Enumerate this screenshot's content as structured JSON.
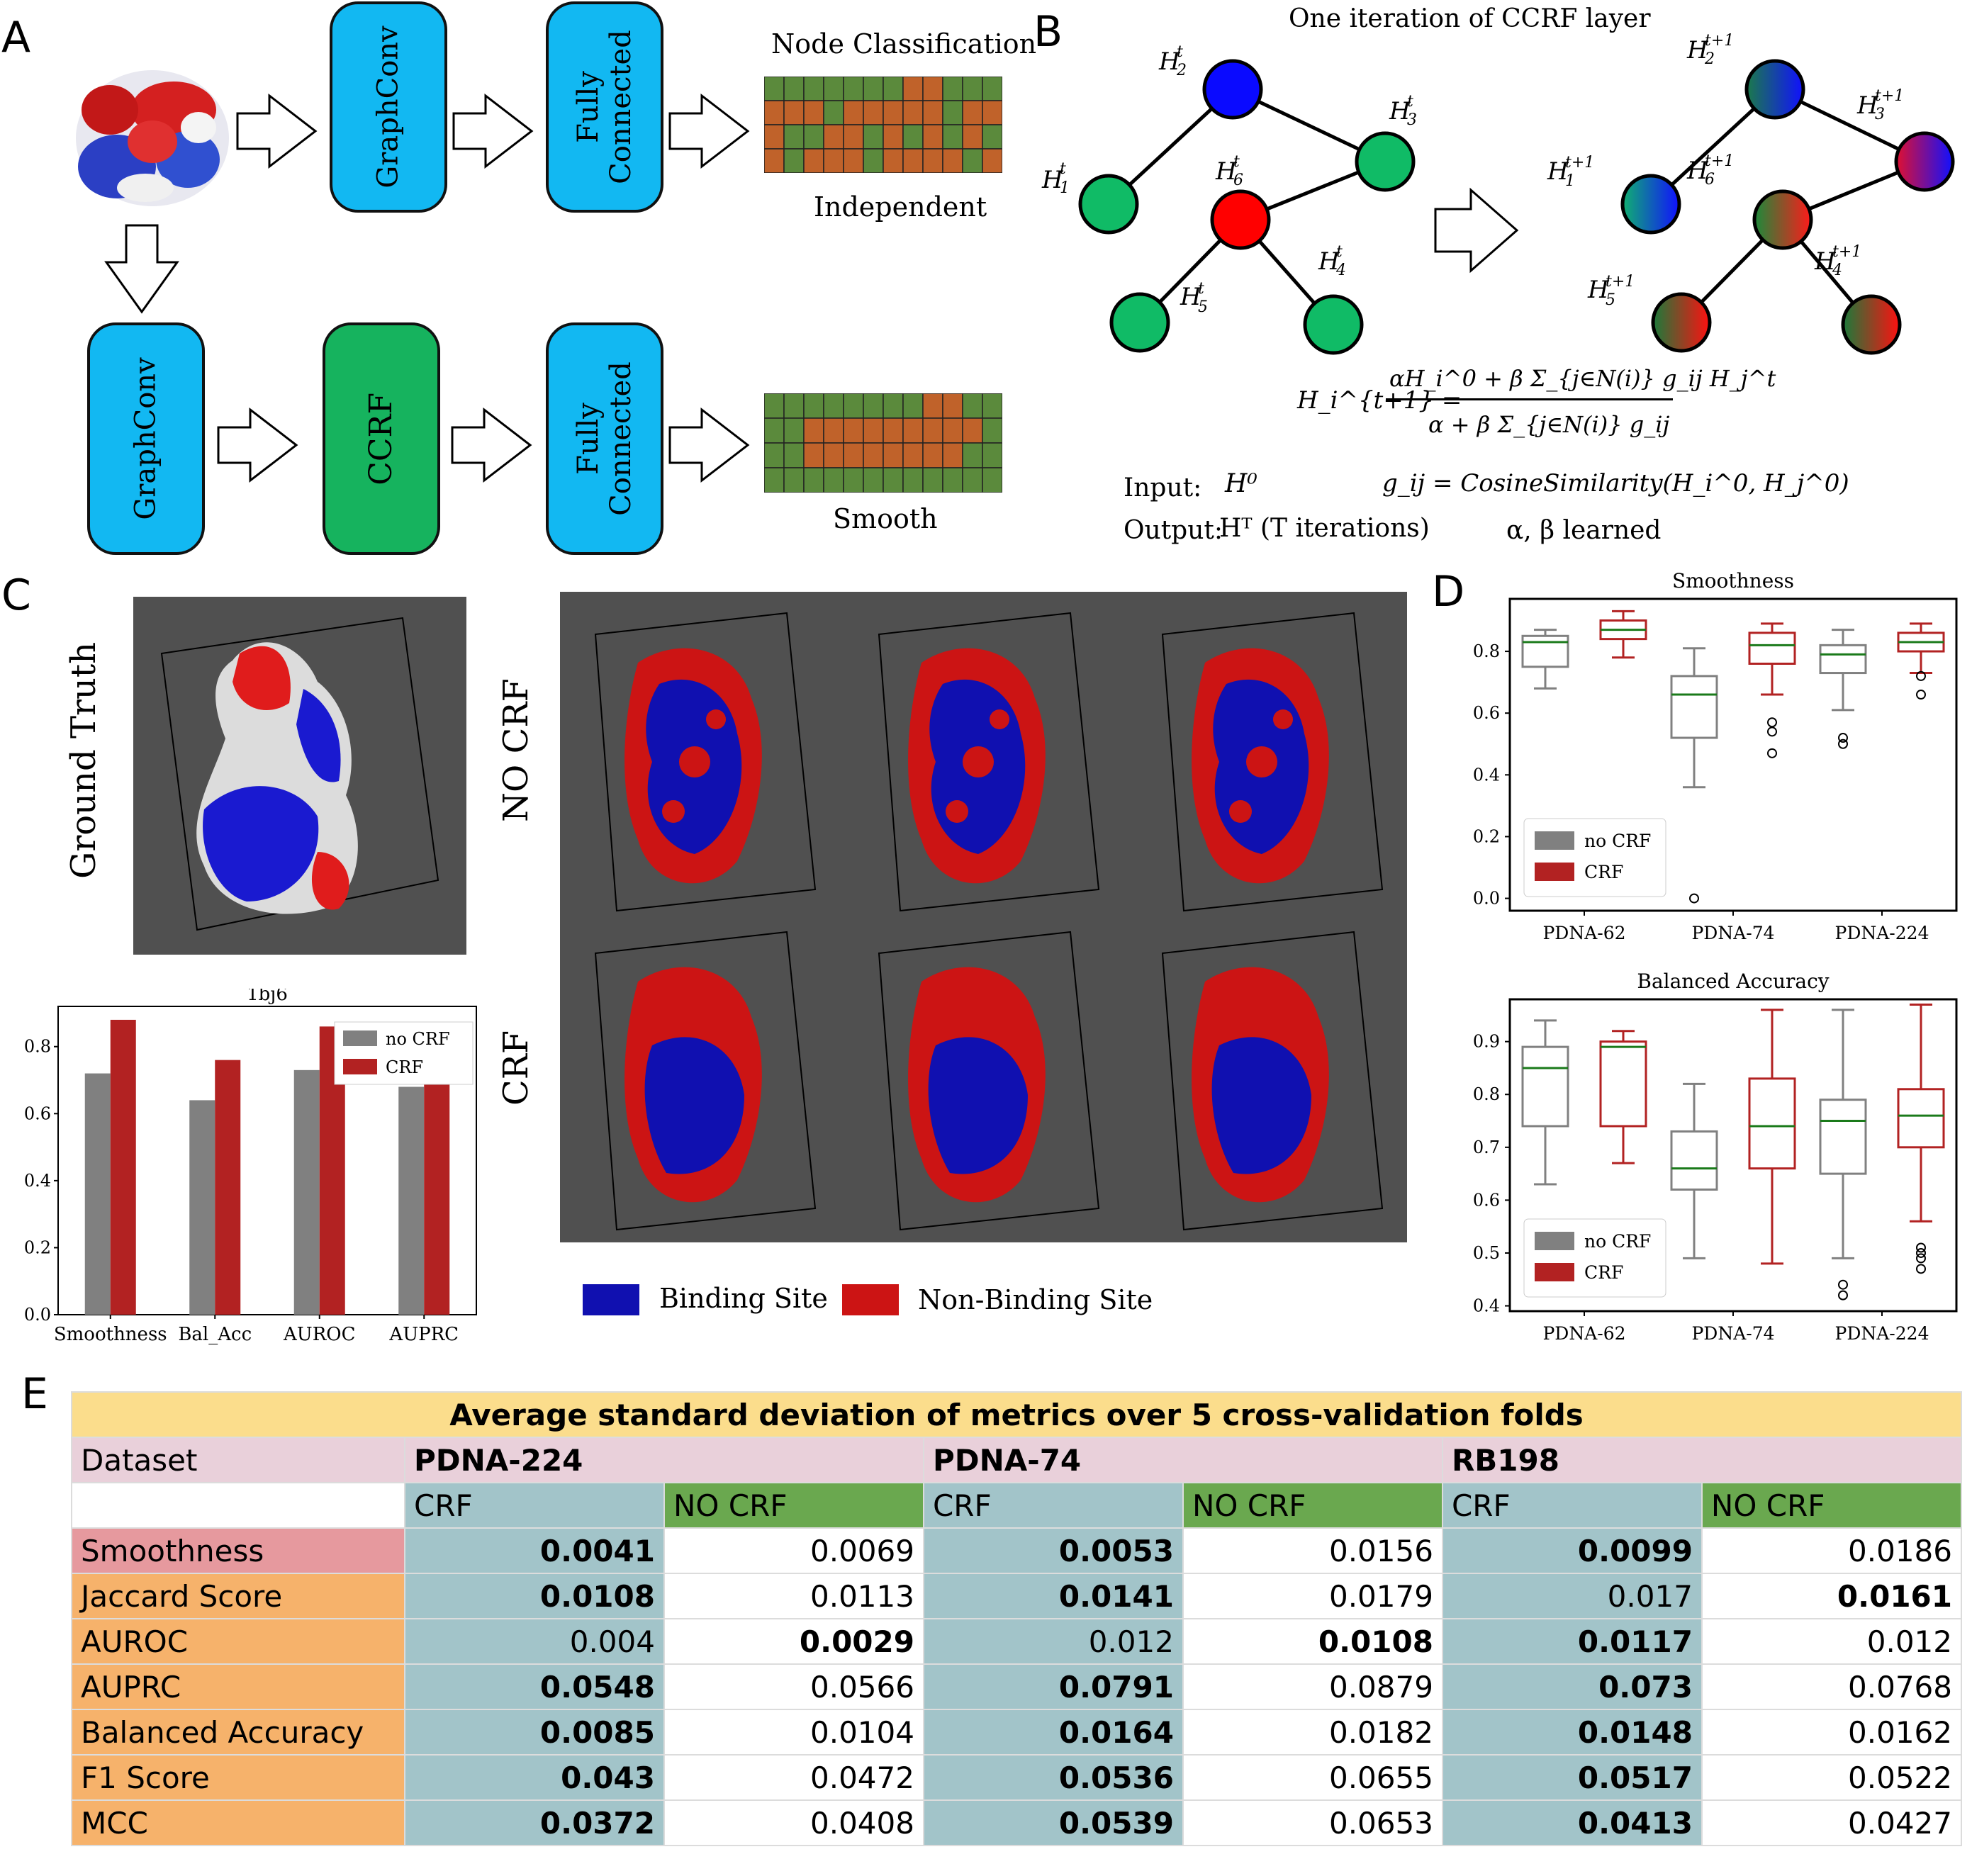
{
  "panel_letters": [
    "A",
    "B",
    "C",
    "D",
    "E"
  ],
  "panel_a": {
    "top_boxes": [
      "GraphConv",
      "Fully\nConnected"
    ],
    "bottom_boxes": [
      "GraphConv",
      "CCRF",
      "Fully\nConnected"
    ],
    "top_grid_title": "Node Classification",
    "top_grid_caption": "Independent",
    "bottom_grid_caption": "Smooth",
    "colors": {
      "box_blue": "#12b8f2",
      "box_green": "#16b35e",
      "grid_green": "#5b8a3c",
      "grid_orange": "#c0622a"
    },
    "top_grid": [
      "GGGGGGGOOGGG",
      "OOOGOOOOOGOO",
      "OGGOOGOGOGOG",
      "OGOOOGOOOOGO"
    ],
    "bottom_grid": [
      "GGGGGGGGOOGG",
      "GGOOOOOOOOOG",
      "GGOOOOOOOOGG",
      "GGGGGGGGGGGG"
    ]
  },
  "panel_b": {
    "title": "One iteration of CCRF layer",
    "nodes_t": [
      "H",
      "H",
      "H",
      "H",
      "H",
      "H"
    ],
    "equation_lhs": "H_i^{t+1} =",
    "equation_num": "αH_i^0 + β Σ_{j∈N(i)} g_ij H_j^t",
    "equation_den": "α + β Σ_{j∈N(i)} g_ij",
    "input_label": "Input:",
    "input_value": "H⁰",
    "output_label": "Output:",
    "output_value": "Hᵀ  (T iterations)",
    "g_def": "g_ij = CosineSimilarity(H_i^0, H_j^0)",
    "learned": "α, β  learned"
  },
  "panel_c": {
    "ground_truth_label": "Ground Truth",
    "no_crf_label": "NO CRF",
    "crf_label": "CRF",
    "legend": [
      {
        "label": "Binding Site",
        "color": "#1010b0"
      },
      {
        "label": "Non-Binding Site",
        "color": "#cc1414"
      }
    ],
    "bar_chart": {
      "type": "bar",
      "title": "1bj6",
      "categories": [
        "Smoothness",
        "Bal_Acc",
        "AUROC",
        "AUPRC"
      ],
      "series": [
        {
          "name": "no CRF",
          "values": [
            0.72,
            0.64,
            0.73,
            0.68
          ],
          "color": "#808080"
        },
        {
          "name": "CRF",
          "values": [
            0.88,
            0.76,
            0.86,
            0.8
          ],
          "color": "#b22222"
        }
      ],
      "ylim": [
        0,
        0.92
      ],
      "yticks": [
        "0.0",
        "0.2",
        "0.4",
        "0.6",
        "0.8"
      ],
      "legend_position": "top-right"
    }
  },
  "chart_data": [
    {
      "type": "box",
      "title": "Smoothness",
      "categories": [
        "PDNA-62",
        "PDNA-74",
        "PDNA-224"
      ],
      "ylim": [
        -0.04,
        0.97
      ],
      "yticks": [
        "0.0",
        "0.2",
        "0.4",
        "0.6",
        "0.8"
      ],
      "legend_position": "lower-left",
      "series": [
        {
          "name": "no CRF",
          "color": "#808080",
          "boxes": [
            {
              "min": 0.68,
              "q1": 0.75,
              "median": 0.83,
              "q3": 0.85,
              "max": 0.87,
              "outliers": []
            },
            {
              "min": 0.36,
              "q1": 0.52,
              "median": 0.66,
              "q3": 0.72,
              "max": 0.81,
              "outliers": [
                0.0
              ]
            },
            {
              "min": 0.61,
              "q1": 0.73,
              "median": 0.79,
              "q3": 0.82,
              "max": 0.87,
              "outliers": [
                0.52,
                0.5
              ]
            }
          ]
        },
        {
          "name": "CRF",
          "color": "#b22222",
          "boxes": [
            {
              "min": 0.78,
              "q1": 0.84,
              "median": 0.87,
              "q3": 0.9,
              "max": 0.93,
              "outliers": []
            },
            {
              "min": 0.66,
              "q1": 0.76,
              "median": 0.82,
              "q3": 0.86,
              "max": 0.89,
              "outliers": [
                0.57,
                0.54,
                0.47
              ]
            },
            {
              "min": 0.73,
              "q1": 0.8,
              "median": 0.83,
              "q3": 0.86,
              "max": 0.89,
              "outliers": [
                0.72,
                0.66
              ]
            }
          ]
        }
      ]
    },
    {
      "type": "box",
      "title": "Balanced Accuracy",
      "categories": [
        "PDNA-62",
        "PDNA-74",
        "PDNA-224"
      ],
      "ylim": [
        0.39,
        0.98
      ],
      "yticks": [
        "0.4",
        "0.5",
        "0.6",
        "0.7",
        "0.8",
        "0.9"
      ],
      "legend_position": "lower-left",
      "series": [
        {
          "name": "no CRF",
          "color": "#808080",
          "boxes": [
            {
              "min": 0.63,
              "q1": 0.74,
              "median": 0.85,
              "q3": 0.89,
              "max": 0.94,
              "outliers": []
            },
            {
              "min": 0.49,
              "q1": 0.62,
              "median": 0.66,
              "q3": 0.73,
              "max": 0.82,
              "outliers": []
            },
            {
              "min": 0.49,
              "q1": 0.65,
              "median": 0.75,
              "q3": 0.79,
              "max": 0.96,
              "outliers": [
                0.44,
                0.42
              ]
            }
          ]
        },
        {
          "name": "CRF",
          "color": "#b22222",
          "boxes": [
            {
              "min": 0.67,
              "q1": 0.74,
              "median": 0.89,
              "q3": 0.9,
              "max": 0.92,
              "outliers": []
            },
            {
              "min": 0.48,
              "q1": 0.66,
              "median": 0.74,
              "q3": 0.83,
              "max": 0.96,
              "outliers": []
            },
            {
              "min": 0.56,
              "q1": 0.7,
              "median": 0.76,
              "q3": 0.81,
              "max": 0.97,
              "outliers": [
                0.51,
                0.5,
                0.49,
                0.47
              ]
            }
          ]
        }
      ]
    }
  ],
  "panel_e": {
    "title": "Average standard deviation of metrics over 5 cross-validation folds",
    "dataset_label": "Dataset",
    "datasets": [
      "PDNA-224",
      "PDNA-74",
      "RB198"
    ],
    "sub_headers": [
      "CRF",
      "NO CRF",
      "CRF",
      "NO CRF",
      "CRF",
      "NO CRF"
    ],
    "rows": [
      {
        "metric": "Smoothness",
        "values": [
          "0.0041",
          "0.0069",
          "0.0053",
          "0.0156",
          "0.0099",
          "0.0186"
        ],
        "bold": [
          0,
          2,
          4
        ]
      },
      {
        "metric": "Jaccard Score",
        "values": [
          "0.0108",
          "0.0113",
          "0.0141",
          "0.0179",
          "0.017",
          "0.0161"
        ],
        "bold": [
          0,
          2,
          5
        ]
      },
      {
        "metric": "AUROC",
        "values": [
          "0.004",
          "0.0029",
          "0.012",
          "0.0108",
          "0.0117",
          "0.012"
        ],
        "bold": [
          1,
          3,
          4
        ]
      },
      {
        "metric": "AUPRC",
        "values": [
          "0.0548",
          "0.0566",
          "0.0791",
          "0.0879",
          "0.073",
          "0.0768"
        ],
        "bold": [
          0,
          2,
          4
        ]
      },
      {
        "metric": "Balanced Accuracy",
        "values": [
          "0.0085",
          "0.0104",
          "0.0164",
          "0.0182",
          "0.0148",
          "0.0162"
        ],
        "bold": [
          0,
          2,
          4
        ]
      },
      {
        "metric": "F1 Score",
        "values": [
          "0.043",
          "0.0472",
          "0.0536",
          "0.0655",
          "0.0517",
          "0.0522"
        ],
        "bold": [
          0,
          2,
          4
        ]
      },
      {
        "metric": "MCC",
        "values": [
          "0.0372",
          "0.0408",
          "0.0539",
          "0.0653",
          "0.0413",
          "0.0427"
        ],
        "bold": [
          0,
          2,
          4
        ]
      }
    ]
  }
}
